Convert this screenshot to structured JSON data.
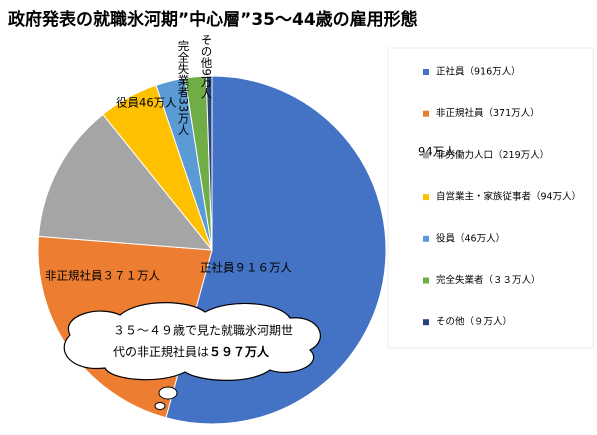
{
  "chart_data": {
    "type": "pie",
    "title": "政府発表の就職氷河期”中心層”35～44歳の雇用形態",
    "categories": [
      "正社員（916万人）",
      "非正規社員（371万人）",
      "非労働力人口（219万人）",
      "自営業主・家族従事者（94万人）",
      "役員（46万人）",
      "完全失業者（３３万人）",
      "その他（９万人）"
    ],
    "values": [
      916,
      371,
      219,
      94,
      46,
      33,
      9
    ],
    "value_labels": [
      "正社員９１６万人",
      "非正規社員３７１万人",
      null,
      "94万人",
      "役員46万人",
      "完全失業者33万人",
      "その他9万人"
    ],
    "colors": [
      "#4472c4",
      "#ed7d31",
      "#a5a5a5",
      "#ffc000",
      "#5b9bd5",
      "#70ad47",
      "#264478"
    ],
    "annotation": {
      "lines": [
        "３５～４９歳で見た就職氷河期世",
        "代の非正規社員は"
      ],
      "emphasis": "５９７万人"
    },
    "legend": "right"
  }
}
